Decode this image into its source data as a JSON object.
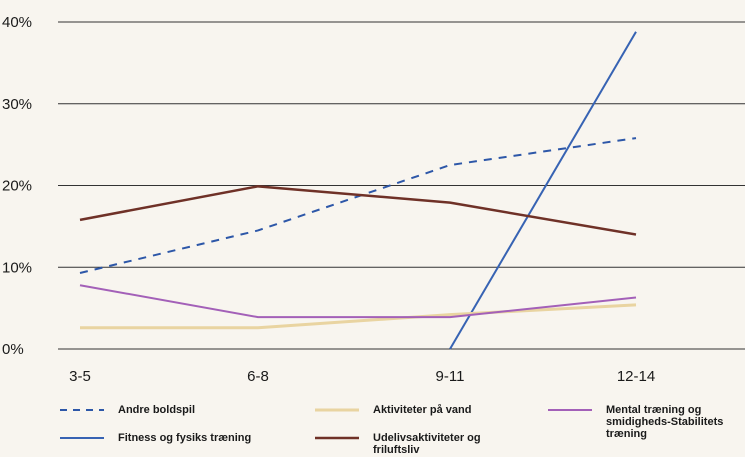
{
  "chart_data": {
    "type": "line",
    "categories": [
      "3-5",
      "6-8",
      "9-11",
      "12-14"
    ],
    "y_ticks": [
      "0%",
      "10%",
      "20%",
      "30%",
      "40%"
    ],
    "ylim": [
      0,
      40
    ],
    "grid": "horizontal",
    "legend_position": "bottom",
    "series": [
      {
        "name": "Andre boldspil",
        "color": "#2d57a8",
        "style": "dashed",
        "values": [
          9.3,
          14.5,
          22.5,
          25.8
        ]
      },
      {
        "name": "Fitness og fysiks træning",
        "color": "#3763b3",
        "style": "solid",
        "values": [
          null,
          null,
          0,
          38.8
        ]
      },
      {
        "name": "Aktiviteter på vand",
        "color": "#e9d4a1",
        "style": "solid",
        "values": [
          2.6,
          2.6,
          4.2,
          5.4
        ]
      },
      {
        "name": "Udelivsaktiviteter og friluftsliv",
        "color": "#6f3127",
        "style": "solid",
        "values": [
          15.8,
          19.9,
          17.9,
          14.0
        ]
      },
      {
        "name": "Mental træning og smidigheds-Stabilitets træning",
        "color": "#a360b8",
        "style": "solid",
        "values": [
          7.8,
          3.9,
          3.9,
          6.3
        ]
      }
    ]
  }
}
